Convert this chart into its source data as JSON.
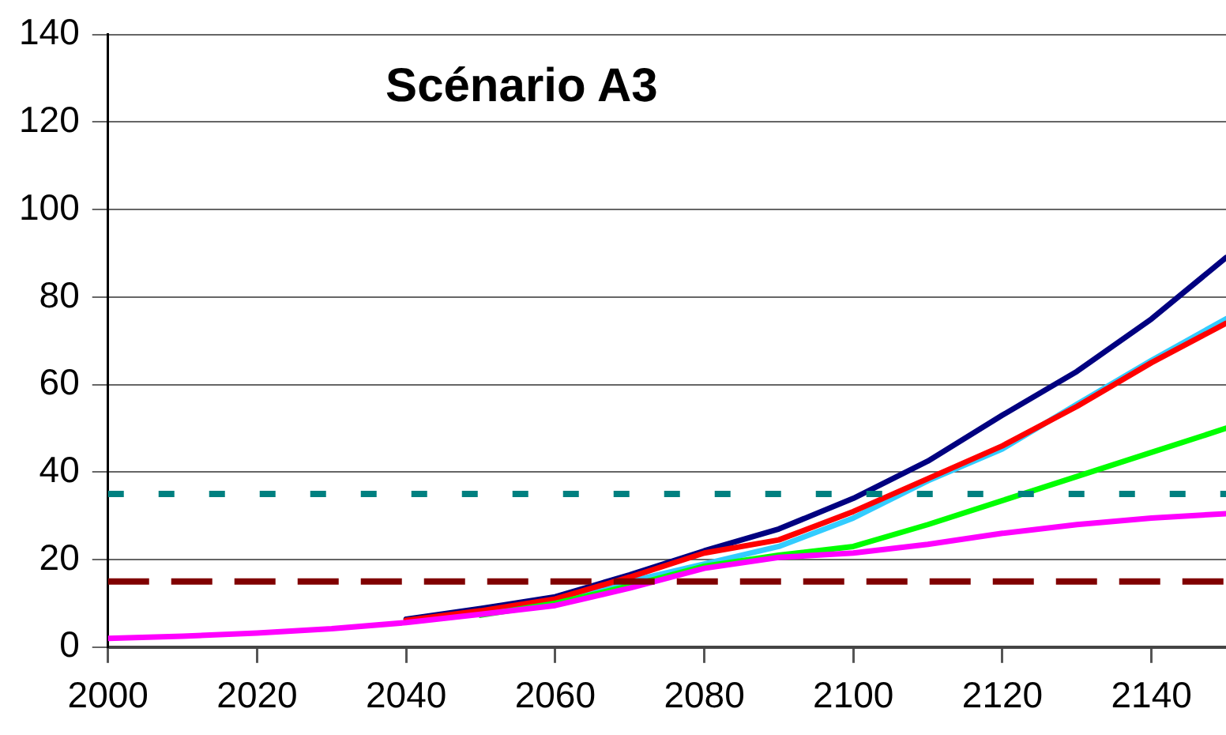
{
  "chart_data": {
    "type": "line",
    "title": "Scénario A3",
    "xlim": [
      2000,
      2150
    ],
    "xticks": [
      2000,
      2020,
      2040,
      2060,
      2080,
      2100,
      2120,
      2140
    ],
    "ylim": [
      0,
      140
    ],
    "yticks": [
      0,
      20,
      40,
      60,
      80,
      100,
      120,
      140
    ],
    "grid": "y",
    "legend": false,
    "marker": "none",
    "line_style": "solid",
    "series": [
      {
        "color": "#000080",
        "x": [
          2040,
          2050,
          2060,
          2070,
          2080,
          2090,
          2100,
          2110,
          2120,
          2130,
          2140,
          2150
        ],
        "values": [
          6.4,
          8.8,
          11.5,
          16.5,
          22,
          27,
          34,
          42.5,
          53,
          63,
          75,
          89
        ]
      },
      {
        "color": "#33ccff",
        "x": [
          2040,
          2050,
          2060,
          2070,
          2080,
          2090,
          2100,
          2110,
          2120,
          2130,
          2140,
          2150
        ],
        "values": [
          5.8,
          7.9,
          10.5,
          15,
          19,
          23,
          29.5,
          38,
          45.3,
          55.5,
          65.5,
          75
        ]
      },
      {
        "color": "#ff0000",
        "x": [
          2040,
          2050,
          2060,
          2070,
          2080,
          2090,
          2100,
          2110,
          2120,
          2130,
          2140,
          2150
        ],
        "values": [
          6.1,
          8.3,
          11,
          16,
          21.5,
          24.5,
          31,
          38.5,
          46,
          55,
          65,
          74
        ]
      },
      {
        "color": "#00ff00",
        "x": [
          2050,
          2060,
          2070,
          2080,
          2090,
          2100,
          2110,
          2120,
          2130,
          2140,
          2150
        ],
        "values": [
          7.3,
          10,
          14,
          18.5,
          21,
          23,
          28,
          33.5,
          39,
          44.5,
          50
        ]
      },
      {
        "color": "#ff00ff",
        "x": [
          2000,
          2010,
          2020,
          2030,
          2040,
          2050,
          2060,
          2070,
          2080,
          2090,
          2100,
          2110,
          2120,
          2130,
          2140,
          2150
        ],
        "values": [
          2,
          2.5,
          3.2,
          4.2,
          5.6,
          7.5,
          9.5,
          13.5,
          18,
          20.5,
          21.5,
          23.5,
          26,
          28,
          29.5,
          30.5
        ]
      }
    ],
    "ref_lines": [
      {
        "axis": "y",
        "value": 35,
        "color": "#008080",
        "line_style": "dotted"
      },
      {
        "axis": "y",
        "value": 15,
        "color": "#800000",
        "line_style": "dashed"
      }
    ]
  }
}
